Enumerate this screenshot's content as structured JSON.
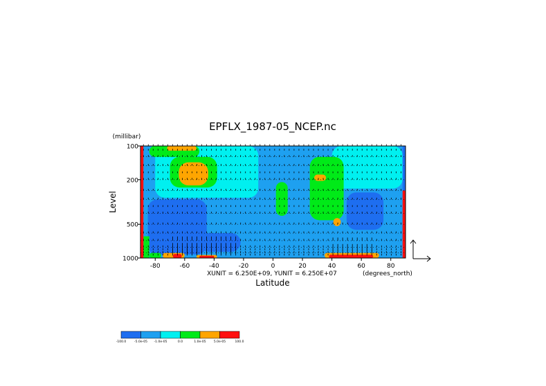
{
  "chart_data": {
    "type": "heatmap",
    "title": "EPFLX_1987-05_NCEP.nc",
    "xlabel": "Latitude",
    "ylabel": "Level",
    "y_units": "(millibar)",
    "x_units": "(degrees_north)",
    "scale_note": "XUNIT = 6.250E+09, YUNIT = 6.250E+07",
    "xlim": [
      -90,
      90
    ],
    "ylim": [
      1000,
      100
    ],
    "y_scale": "log",
    "grid": true,
    "x_ticks": [
      -80,
      -60,
      -40,
      -20,
      0,
      20,
      40,
      60,
      80
    ],
    "y_ticks": [
      100,
      200,
      500,
      1000
    ],
    "legend_position": "bottom-left",
    "colorbar": {
      "colors": [
        "#1e6ef0",
        "#1ea0f0",
        "#00f0f0",
        "#00ea18",
        "#ffa500",
        "#ff1010"
      ],
      "labels": [
        "-100.0",
        "-5.0e-05",
        "-1.0e-05",
        "0.0",
        "1.0e-05",
        "5.0e-05",
        "100.0"
      ]
    },
    "regions": [
      {
        "lat0": -90,
        "lat1": 90,
        "p_top": 100,
        "p_bot": 1000,
        "color": "#1ea0f0"
      },
      {
        "lat0": -80,
        "lat1": -10,
        "p_top": 100,
        "p_bot": 290,
        "color": "#00f0f0"
      },
      {
        "lat0": 40,
        "lat1": 88,
        "p_top": 100,
        "p_bot": 240,
        "color": "#00f0f0"
      },
      {
        "lat0": -84,
        "lat1": -50,
        "p_top": 100,
        "p_bot": 125,
        "color": "#00ea18"
      },
      {
        "lat0": -72,
        "lat1": -52,
        "p_top": 100,
        "p_bot": 110,
        "color": "#ffa500"
      },
      {
        "lat0": -70,
        "lat1": -38,
        "p_top": 125,
        "p_bot": 235,
        "color": "#00ea18"
      },
      {
        "lat0": -64,
        "lat1": -44,
        "p_top": 140,
        "p_bot": 225,
        "color": "#ffa500"
      },
      {
        "lat0": 25,
        "lat1": 48,
        "p_top": 125,
        "p_bot": 460,
        "color": "#00ea18"
      },
      {
        "lat0": 28,
        "lat1": 36,
        "p_top": 180,
        "p_bot": 205,
        "color": "#ffa500"
      },
      {
        "lat0": 41,
        "lat1": 46,
        "p_top": 440,
        "p_bot": 520,
        "color": "#ffa500"
      },
      {
        "lat0": 2,
        "lat1": 10,
        "p_top": 210,
        "p_bot": 420,
        "color": "#00ea18"
      },
      {
        "lat0": -85,
        "lat1": -45,
        "p_top": 300,
        "p_bot": 930,
        "color": "#1e6ef0"
      },
      {
        "lat0": -50,
        "lat1": -22,
        "p_top": 600,
        "p_bot": 880,
        "color": "#1e6ef0"
      },
      {
        "lat0": 50,
        "lat1": 75,
        "p_top": 260,
        "p_bot": 560,
        "color": "#1e6ef0"
      },
      {
        "lat0": 42,
        "lat1": 60,
        "p_top": 700,
        "p_bot": 950,
        "color": "#1ea0f0"
      },
      {
        "lat0": -88,
        "lat1": -84,
        "p_top": 640,
        "p_bot": 1000,
        "color": "#00ea18"
      },
      {
        "lat0": -84,
        "lat1": -76,
        "p_top": 900,
        "p_bot": 1000,
        "color": "#00ea18"
      },
      {
        "lat0": -75,
        "lat1": -60,
        "p_top": 900,
        "p_bot": 1000,
        "color": "#ffa500"
      },
      {
        "lat0": -68,
        "lat1": -62,
        "p_top": 920,
        "p_bot": 1000,
        "color": "#ff1010"
      },
      {
        "lat0": -52,
        "lat1": -38,
        "p_top": 940,
        "p_bot": 1000,
        "color": "#ffa500"
      },
      {
        "lat0": -50,
        "lat1": -40,
        "p_top": 955,
        "p_bot": 1000,
        "color": "#ff1010"
      },
      {
        "lat0": 35,
        "lat1": 72,
        "p_top": 900,
        "p_bot": 1000,
        "color": "#ffa500"
      },
      {
        "lat0": 38,
        "lat1": 68,
        "p_top": 935,
        "p_bot": 1000,
        "color": "#ff1010"
      },
      {
        "lat0": -90,
        "lat1": -88,
        "p_top": 100,
        "p_bot": 1000,
        "color": "#ff1010"
      },
      {
        "lat0": 88,
        "lat1": 90,
        "p_top": 100,
        "p_bot": 250,
        "color": "#1e6ef0"
      },
      {
        "lat0": 88,
        "lat1": 90,
        "p_top": 250,
        "p_bot": 1000,
        "color": "#ff1010"
      }
    ],
    "arrow_columns": {
      "lat_start": -88,
      "lat_end": 88,
      "lat_step": 3.3
    },
    "arrow_rows_p": [
      100,
      110,
      125,
      150,
      175,
      200,
      250,
      300,
      350,
      400,
      500,
      600,
      700,
      800,
      850,
      900,
      950
    ]
  }
}
